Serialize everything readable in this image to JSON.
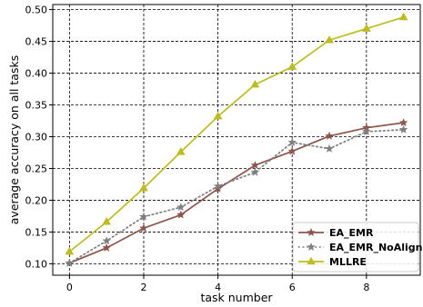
{
  "chart_data": {
    "type": "line",
    "title": "",
    "xlabel": "task number",
    "ylabel": "average accuracy on all tasks",
    "xlim": [
      -0.45,
      9.45
    ],
    "ylim": [
      0.082,
      0.508
    ],
    "xticks": [
      0,
      2,
      4,
      6,
      8
    ],
    "yticks": [
      0.1,
      0.15,
      0.2,
      0.25,
      0.3,
      0.35,
      0.4,
      0.45,
      0.5
    ],
    "grid": true,
    "grid_style": "dashed",
    "legend_position": "lower-right",
    "x": [
      0,
      1,
      2,
      3,
      4,
      5,
      6,
      7,
      8,
      9
    ],
    "series": [
      {
        "name": "EA_EMR",
        "color": "#8c564b",
        "line_style": "solid",
        "marker": "star",
        "values": [
          0.101,
          0.125,
          0.156,
          0.177,
          0.218,
          0.255,
          0.277,
          0.301,
          0.314,
          0.322
        ]
      },
      {
        "name": "EA_EMR_NoAlign",
        "color": "#7f7f7f",
        "line_style": "dotted",
        "marker": "star",
        "values": [
          0.101,
          0.136,
          0.174,
          0.189,
          0.222,
          0.244,
          0.291,
          0.281,
          0.308,
          0.311
        ]
      },
      {
        "name": "MLLRE",
        "color": "#bcbd22",
        "line_style": "solid",
        "marker": "triangle",
        "values": [
          0.119,
          0.166,
          0.219,
          0.276,
          0.332,
          0.382,
          0.41,
          0.452,
          0.47,
          0.488
        ]
      }
    ]
  }
}
